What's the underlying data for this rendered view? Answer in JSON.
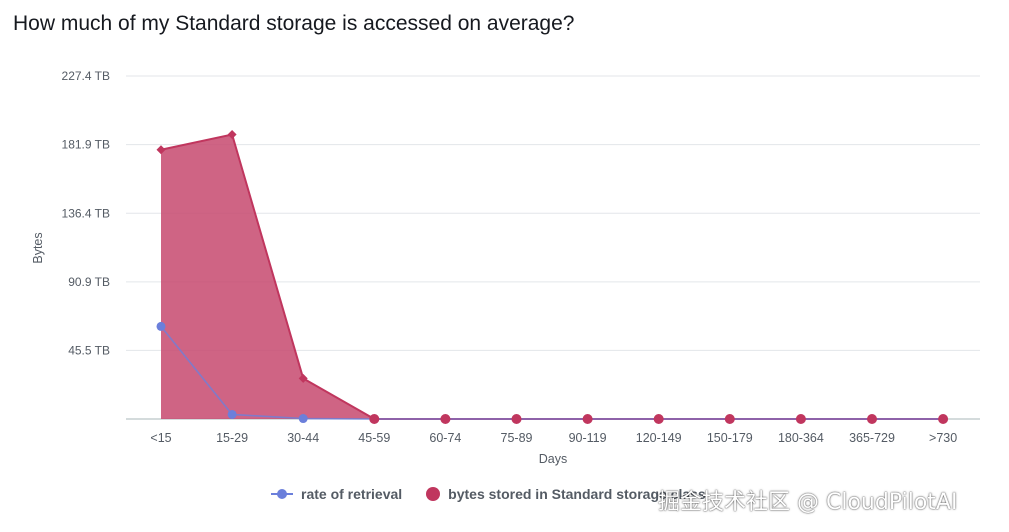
{
  "title": "How much of my Standard storage is accessed on average?",
  "watermark": "掘金技术社区 @ CloudPilotAI",
  "colors": {
    "retrieval": "#6b7fdb",
    "stored": "#c0365e",
    "stored_fill": "#c7496f",
    "grid": "#e3e6ea",
    "axis": "#aab7b8"
  },
  "legend": {
    "retrieval_label": "rate of retrieval",
    "stored_label": "bytes stored in Standard storage class"
  },
  "chart_data": {
    "type": "area",
    "title": "How much of my Standard storage is accessed on average?",
    "xlabel": "Days",
    "ylabel": "Bytes",
    "unit": "TB",
    "categories": [
      "<15",
      "15-29",
      "30-44",
      "45-59",
      "60-74",
      "75-89",
      "90-119",
      "120-149",
      "150-179",
      "180-364",
      "365-729",
      ">730"
    ],
    "y_ticks": [
      "45.5 TB",
      "90.9 TB",
      "136.4 TB",
      "181.9 TB",
      "227.4 TB"
    ],
    "y_tick_values": [
      45.5,
      90.9,
      136.4,
      181.9,
      227.4
    ],
    "ylim": [
      0,
      227.4
    ],
    "grid": true,
    "legend_position": "bottom",
    "series": [
      {
        "name": "rate of retrieval",
        "type": "line",
        "values": [
          61.4,
          3.0,
          0.3,
          0,
          0,
          0,
          0,
          0,
          0,
          0,
          0,
          0
        ]
      },
      {
        "name": "bytes stored in Standard storage class",
        "type": "area",
        "values": [
          178.5,
          188.6,
          26.9,
          0,
          0,
          0,
          0,
          0,
          0,
          0,
          0,
          0
        ]
      }
    ]
  }
}
